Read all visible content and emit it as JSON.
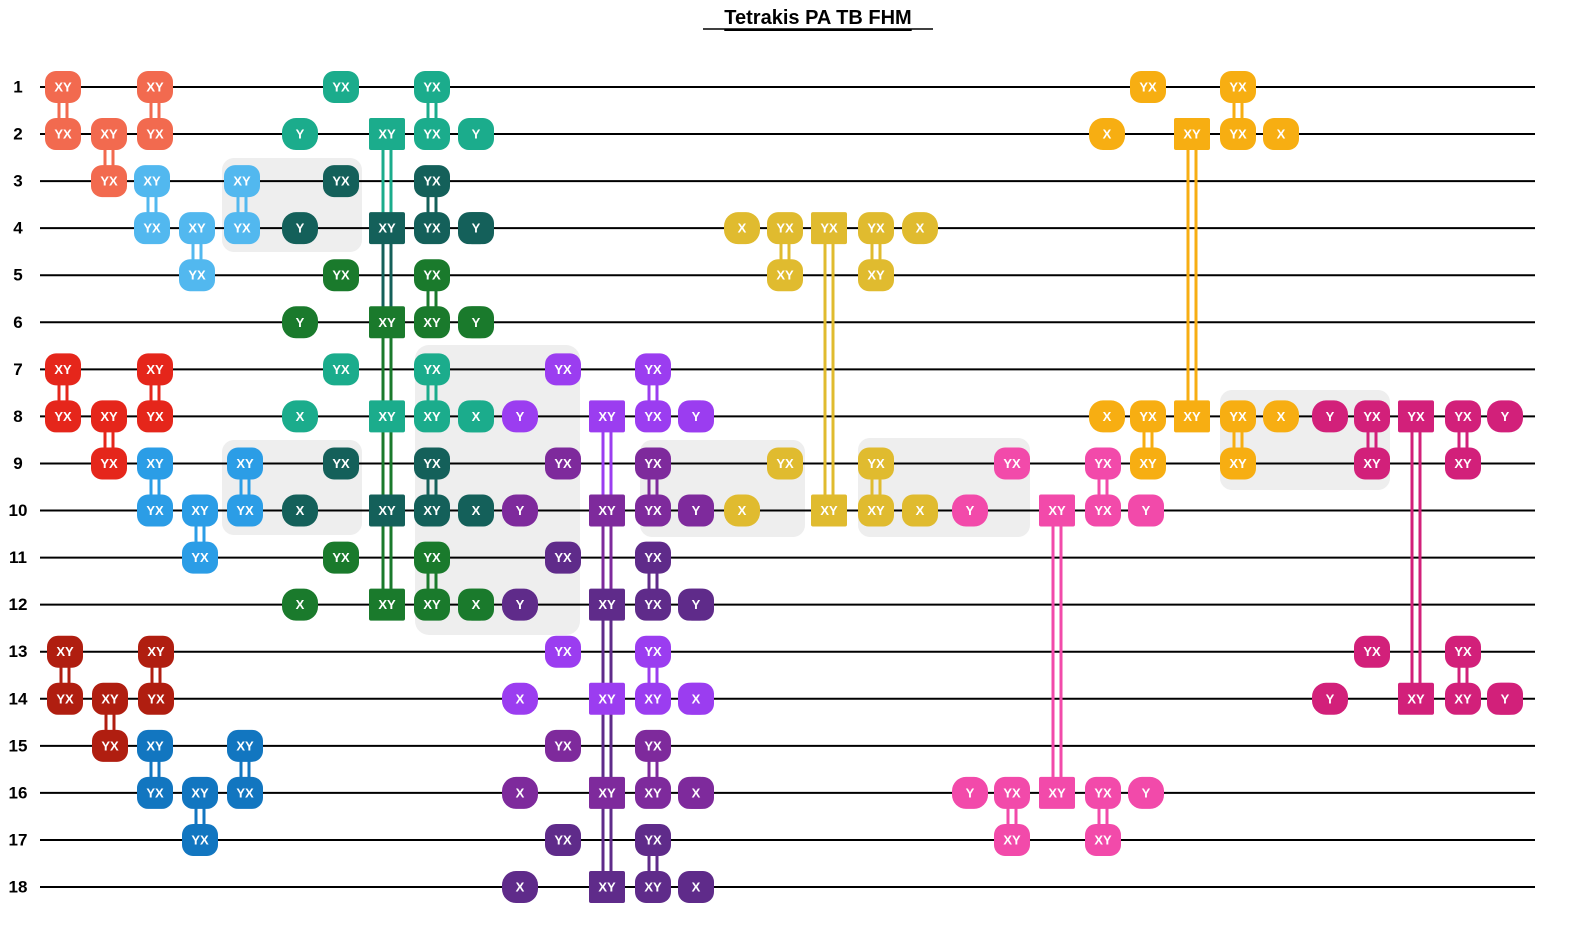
{
  "title": "Tetrakis PA TB FHM",
  "qubits": [
    "1",
    "2",
    "3",
    "4",
    "5",
    "6",
    "7",
    "8",
    "9",
    "10",
    "11",
    "12",
    "13",
    "14",
    "15",
    "16",
    "17",
    "18"
  ],
  "blocks": [
    {
      "gates": [
        "XY",
        "YX",
        "XY",
        "YX",
        "XY",
        "YX"
      ]
    },
    {
      "gates": [
        "XY",
        "YX",
        "XY",
        "YX",
        "XY",
        "YX"
      ]
    },
    {
      "gates": [
        "XY",
        "YX",
        "XY",
        "YX",
        "XY",
        "YX"
      ]
    },
    {
      "gates": [
        "XY",
        "YX",
        "XY",
        "YX",
        "XY",
        "YX"
      ]
    },
    {
      "gates": [
        "XY",
        "YX",
        "XY",
        "YX",
        "XY",
        "YX"
      ]
    },
    {
      "gates": [
        "XY",
        "YX",
        "XY",
        "YX",
        "XY",
        "YX"
      ]
    },
    {
      "gates": [
        "YX",
        "Y",
        "XY",
        "YX",
        "XY",
        "YX",
        "Y"
      ]
    },
    {
      "gates": [
        "YX",
        "Y",
        "XY",
        "YX",
        "XY",
        "YX",
        "Y"
      ]
    },
    {
      "gates": [
        "YX",
        "Y",
        "XY",
        "XY",
        "XY",
        "YX",
        "Y"
      ]
    },
    {
      "gates": [
        "YX",
        "X",
        "XY",
        "XY",
        "XY",
        "YX",
        "X"
      ]
    },
    {
      "gates": [
        "YX",
        "X",
        "XY",
        "XY",
        "XY",
        "YX",
        "X"
      ]
    },
    {
      "gates": [
        "YX",
        "X",
        "XY",
        "XY",
        "XY",
        "YX",
        "X"
      ]
    },
    {
      "gates": [
        "YX",
        "Y",
        "XY",
        "YX",
        "XY",
        "YX",
        "Y"
      ]
    },
    {
      "gates": [
        "YX",
        "Y",
        "XY",
        "YX",
        "XY",
        "YX",
        "Y"
      ]
    },
    {
      "gates": [
        "YX",
        "Y",
        "XY",
        "YX",
        "XY",
        "YX",
        "Y"
      ]
    },
    {
      "gates": [
        "YX",
        "X",
        "XY",
        "XY",
        "XY",
        "YX",
        "X"
      ]
    },
    {
      "gates": [
        "YX",
        "X",
        "XY",
        "XY",
        "XY",
        "YX",
        "X"
      ]
    },
    {
      "gates": [
        "YX",
        "X",
        "XY",
        "XY",
        "XY",
        "YX",
        "X"
      ]
    },
    {
      "gates": [
        "X",
        "YX",
        "XY",
        "YX",
        "YX",
        "XY",
        "X"
      ]
    },
    {
      "gates": [
        "YX",
        "X",
        "XY",
        "XY",
        "XY",
        "YX",
        "X"
      ]
    },
    {
      "gates": [
        "YX",
        "X",
        "XY",
        "YX",
        "XY",
        "YX",
        "X"
      ]
    },
    {
      "gates": [
        "X",
        "YX",
        "XY",
        "XY",
        "YX",
        "XY",
        "X"
      ]
    },
    {
      "gates": [
        "YX",
        "Y",
        "XY",
        "YX",
        "XY",
        "YX",
        "Y"
      ]
    },
    {
      "gates": [
        "Y",
        "YX",
        "XY",
        "XY",
        "YX",
        "XY",
        "Y"
      ]
    },
    {
      "gates": [
        "Y",
        "YX",
        "XY",
        "YX",
        "YX",
        "XY",
        "Y"
      ]
    },
    {
      "gates": [
        "YX",
        "Y",
        "XY",
        "XY",
        "XY",
        "YX",
        "Y"
      ]
    }
  ]
}
